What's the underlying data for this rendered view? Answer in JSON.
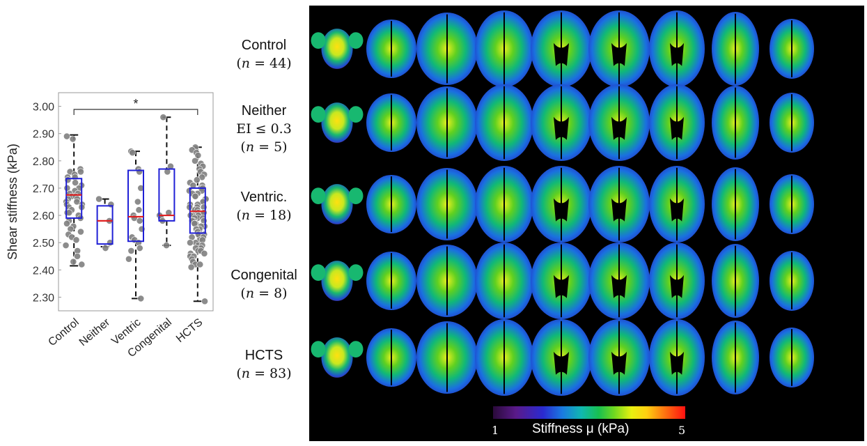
{
  "chart_data": {
    "type": "box",
    "ylabel": "Shear stiffness (kPa)",
    "ylim": [
      2.25,
      3.05
    ],
    "yticks": [
      "2.30",
      "2.40",
      "2.50",
      "2.60",
      "2.70",
      "2.80",
      "2.90",
      "3.00"
    ],
    "categories": [
      "Control",
      "Neither",
      "Ventric",
      "Congenital",
      "HCTS"
    ],
    "significance": {
      "from": "Control",
      "to": "HCTS",
      "label": "*"
    },
    "boxes": [
      {
        "name": "Control",
        "whisker_low": 2.415,
        "q1": 2.59,
        "median": 2.675,
        "q3": 2.735,
        "whisker_high": 2.895,
        "points": [
          2.89,
          2.88,
          2.77,
          2.76,
          2.76,
          2.75,
          2.74,
          2.74,
          2.73,
          2.72,
          2.71,
          2.7,
          2.7,
          2.69,
          2.68,
          2.68,
          2.67,
          2.67,
          2.66,
          2.66,
          2.65,
          2.65,
          2.64,
          2.64,
          2.63,
          2.63,
          2.62,
          2.61,
          2.61,
          2.6,
          2.59,
          2.58,
          2.57,
          2.56,
          2.55,
          2.54,
          2.53,
          2.52,
          2.51,
          2.49,
          2.47,
          2.45,
          2.43,
          2.42
        ]
      },
      {
        "name": "Neither",
        "whisker_low": 2.485,
        "q1": 2.495,
        "median": 2.58,
        "q3": 2.635,
        "whisker_high": 2.66,
        "points": [
          2.66,
          2.64,
          2.58,
          2.5,
          2.48
        ]
      },
      {
        "name": "Ventric",
        "whisker_low": 2.295,
        "q1": 2.505,
        "median": 2.595,
        "q3": 2.765,
        "whisker_high": 2.835,
        "points": [
          2.835,
          2.83,
          2.77,
          2.76,
          2.7,
          2.65,
          2.62,
          2.6,
          2.59,
          2.58,
          2.55,
          2.52,
          2.51,
          2.5,
          2.48,
          2.47,
          2.44,
          2.295
        ]
      },
      {
        "name": "Congenital",
        "whisker_low": 2.49,
        "q1": 2.58,
        "median": 2.6,
        "q3": 2.77,
        "whisker_high": 2.96,
        "points": [
          2.96,
          2.78,
          2.76,
          2.61,
          2.6,
          2.59,
          2.58,
          2.49
        ]
      },
      {
        "name": "HCTS",
        "whisker_low": 2.285,
        "q1": 2.535,
        "median": 2.615,
        "q3": 2.7,
        "whisker_high": 2.85,
        "points": [
          2.85,
          2.84,
          2.83,
          2.82,
          2.8,
          2.79,
          2.78,
          2.77,
          2.76,
          2.75,
          2.74,
          2.73,
          2.72,
          2.71,
          2.71,
          2.7,
          2.7,
          2.69,
          2.69,
          2.68,
          2.68,
          2.67,
          2.67,
          2.66,
          2.66,
          2.65,
          2.65,
          2.64,
          2.64,
          2.63,
          2.63,
          2.63,
          2.62,
          2.62,
          2.62,
          2.61,
          2.61,
          2.61,
          2.6,
          2.6,
          2.6,
          2.59,
          2.59,
          2.59,
          2.58,
          2.58,
          2.58,
          2.57,
          2.57,
          2.57,
          2.56,
          2.56,
          2.56,
          2.55,
          2.55,
          2.55,
          2.54,
          2.54,
          2.53,
          2.53,
          2.53,
          2.52,
          2.52,
          2.51,
          2.51,
          2.5,
          2.5,
          2.49,
          2.49,
          2.48,
          2.48,
          2.47,
          2.47,
          2.46,
          2.46,
          2.45,
          2.45,
          2.44,
          2.43,
          2.42,
          2.42,
          2.41,
          2.285
        ]
      }
    ]
  },
  "map_panel": {
    "rows": [
      {
        "group": "Control",
        "n": "44"
      },
      {
        "group": "Neither",
        "extra": "EI ≤ 0.3",
        "n": "5"
      },
      {
        "group": "Ventric.",
        "n": "18"
      },
      {
        "group": "Congenital",
        "n": "8"
      },
      {
        "group": "HCTS",
        "n": "83"
      }
    ],
    "slices_per_row": 9,
    "colorbar": {
      "label": "Stiffness μ (kPa)",
      "min": "1",
      "max": "5"
    }
  },
  "colors": {
    "box": "#1f1fd6",
    "median": "#e02020",
    "points": "#808080",
    "whisker": "#111111"
  }
}
